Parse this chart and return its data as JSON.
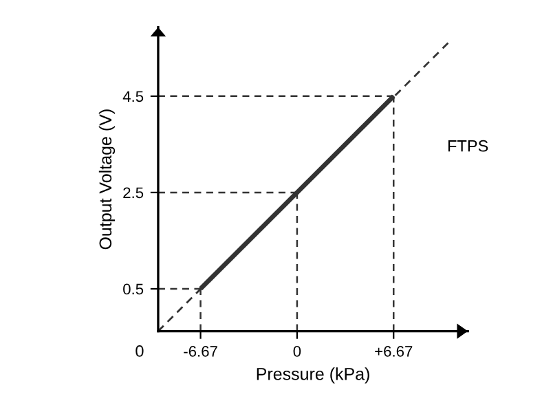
{
  "chart_data": {
    "type": "line",
    "xlabel": "Pressure (kPa)",
    "ylabel": "Output Voltage (V)",
    "xlim": [
      -9.6,
      11.8
    ],
    "ylim": [
      -0.38,
      5.93
    ],
    "xticks": [
      -6.67,
      0,
      {
        "value": 6.67,
        "label": "+6.67"
      }
    ],
    "yticks": [
      0.5,
      2.5,
      4.5
    ],
    "series": [
      {
        "color": "#333333",
        "x": [
          -6.67,
          6.67
        ],
        "values": [
          0.5,
          4.5
        ],
        "line_style": "solid"
      },
      {
        "color": "#333333",
        "x": [
          -9.6,
          10.45
        ],
        "values": [
          -0.38,
          5.61
        ],
        "line_style": "dashed"
      }
    ],
    "ref_lines": [
      {
        "axis": "y",
        "value": 0.5,
        "color": "#333333",
        "line_style": "dashed"
      },
      {
        "axis": "y",
        "value": 2.5,
        "color": "#333333",
        "line_style": "dashed"
      },
      {
        "axis": "y",
        "value": 4.5,
        "color": "#333333",
        "line_style": "dashed"
      },
      {
        "axis": "x",
        "value": -6.67,
        "color": "#333333",
        "line_style": "dashed"
      },
      {
        "axis": "x",
        "value": 0,
        "color": "#333333",
        "line_style": "dashed"
      },
      {
        "axis": "x",
        "value": 6.67,
        "color": "#333333",
        "line_style": "dashed"
      }
    ],
    "annotations": [
      "FTPS",
      "0"
    ],
    "grid": false,
    "legend": false,
    "marker": "none"
  }
}
